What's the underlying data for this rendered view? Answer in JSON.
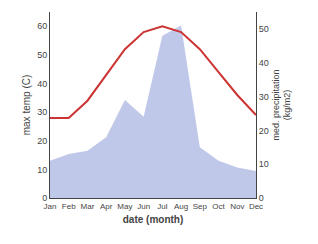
{
  "chart_data": {
    "type": "line",
    "categories": [
      "Jan",
      "Feb",
      "Mar",
      "Apr",
      "May",
      "Jun",
      "Jul",
      "Aug",
      "Sep",
      "Oct",
      "Nov",
      "Dec"
    ],
    "series": [
      {
        "type": "area",
        "axis": "y2",
        "color": "#bfc8e8",
        "values": [
          11,
          13,
          14,
          18,
          29,
          24,
          48,
          51,
          15,
          11,
          9,
          8
        ]
      },
      {
        "type": "line",
        "color": "#cc3333",
        "values": [
          28,
          28,
          34,
          43,
          52,
          58,
          60,
          58,
          52,
          44,
          36,
          29
        ]
      }
    ],
    "xlabel": "date (month)",
    "ylabel": "max temp (C)",
    "y2label": "med. precipitation\n(kg/m2)",
    "ylim": [
      0,
      65
    ],
    "yticks": [
      0,
      10,
      20,
      30,
      40,
      50,
      60
    ],
    "y2lim": [
      0,
      55
    ],
    "y2ticks": [
      0,
      10,
      20,
      30,
      40,
      50
    ],
    "grid": false
  }
}
